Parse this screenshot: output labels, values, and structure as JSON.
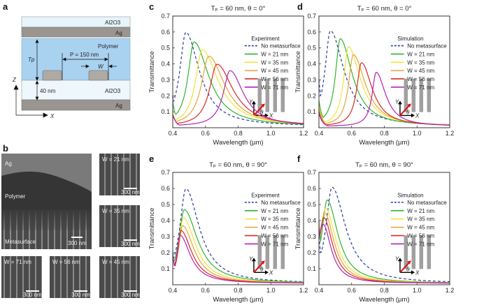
{
  "panel_labels": [
    "a",
    "b",
    "c",
    "d",
    "e",
    "f"
  ],
  "panel_a": {
    "layers": [
      "Al2O3",
      "Ag",
      "Polymer",
      "Al2O3",
      "Ag"
    ],
    "period_label": "P = 150 nm",
    "width_label": "W",
    "thickness_label": "Tp",
    "spacer_label": "40 nm",
    "axis_z": "Z",
    "axis_x": "X"
  },
  "panel_b": {
    "cross_section_labels": [
      "Ag",
      "Polymer",
      "Metasurface"
    ],
    "scale_bar": "300 nm",
    "tiles": [
      "W = 21 nm",
      "W = 35 nm",
      "W = 71 nm",
      "W = 56 nm",
      "W = 45 nm"
    ]
  },
  "colors": {
    "no_metasurface": "#2b3e9c",
    "w21": "#2fb52f",
    "w35": "#f2e23a",
    "w45": "#e8a33a",
    "w56": "#d42a24",
    "w71": "#b324b3"
  },
  "chart_data": [
    {
      "type": "line",
      "panel": "c",
      "title": "Tₚ = 60 nm, θ = 0°",
      "annotation": "Experiment",
      "xlabel": "Wavelength (µm)",
      "ylabel": "Transmittance",
      "xlim": [
        0.4,
        1.2
      ],
      "ylim": [
        0,
        0.7
      ],
      "xticks": [
        "0.4",
        "0.6",
        "0.8",
        "1.0",
        "1.2"
      ],
      "yticks": [
        "0.1",
        "0.2",
        "0.3",
        "0.4",
        "0.5",
        "0.6",
        "0.7"
      ],
      "inset_axes": [
        "Y",
        "X",
        "θ"
      ],
      "series": [
        {
          "name": "No metasurface",
          "color_key": "no_metasurface",
          "dashed": true,
          "peak_x": 0.48,
          "peak_y": 0.59,
          "start_y": 0.2,
          "width_left": 0.045,
          "width_right": 0.1
        },
        {
          "name": "W = 21 nm",
          "color_key": "w21",
          "peak_x": 0.53,
          "peak_y": 0.53,
          "start_y": 0.16,
          "width_left": 0.045,
          "width_right": 0.11
        },
        {
          "name": "W = 35 nm",
          "color_key": "w35",
          "peak_x": 0.58,
          "peak_y": 0.48,
          "start_y": 0.09,
          "width_left": 0.05,
          "width_right": 0.12
        },
        {
          "name": "W = 45 nm",
          "color_key": "w45",
          "peak_x": 0.62,
          "peak_y": 0.44,
          "start_y": 0.08,
          "width_left": 0.055,
          "width_right": 0.12
        },
        {
          "name": "W = 56 nm",
          "color_key": "w56",
          "peak_x": 0.67,
          "peak_y": 0.39,
          "start_y": 0.08,
          "width_left": 0.055,
          "width_right": 0.12
        },
        {
          "name": "W = 71 nm",
          "color_key": "w71",
          "peak_x": 0.75,
          "peak_y": 0.35,
          "start_y": 0.08,
          "width_left": 0.05,
          "width_right": 0.1
        }
      ]
    },
    {
      "type": "line",
      "panel": "d",
      "title": "Tₚ = 60 nm, θ = 0°",
      "annotation": "Simulation",
      "xlabel": "Wavelength (µm)",
      "ylabel": "Transmittance",
      "xlim": [
        0.4,
        1.2
      ],
      "ylim": [
        0,
        0.7
      ],
      "xticks": [
        "0.4",
        "0.6",
        "0.8",
        "1.0",
        "1.2"
      ],
      "yticks": [
        "0.1",
        "0.2",
        "0.3",
        "0.4",
        "0.5",
        "0.6",
        "0.7"
      ],
      "inset_axes": [
        "Y",
        "X",
        "θ"
      ],
      "series": [
        {
          "name": "No metasurface",
          "color_key": "no_metasurface",
          "dashed": true,
          "peak_x": 0.47,
          "peak_y": 0.6,
          "start_y": 0.3,
          "width_left": 0.04,
          "width_right": 0.1
        },
        {
          "name": "W = 21 nm",
          "color_key": "w21",
          "peak_x": 0.53,
          "peak_y": 0.55,
          "start_y": 0.17,
          "width_left": 0.035,
          "width_right": 0.09
        },
        {
          "name": "W = 35 nm",
          "color_key": "w35",
          "peak_x": 0.58,
          "peak_y": 0.5,
          "start_y": 0.14,
          "width_left": 0.035,
          "width_right": 0.09
        },
        {
          "name": "W = 45 nm",
          "color_key": "w45",
          "peak_x": 0.61,
          "peak_y": 0.45,
          "start_y": 0.12,
          "width_left": 0.035,
          "width_right": 0.09
        },
        {
          "name": "W = 56 nm",
          "color_key": "w56",
          "peak_x": 0.66,
          "peak_y": 0.4,
          "start_y": 0.1,
          "width_left": 0.035,
          "width_right": 0.08
        },
        {
          "name": "W = 71 nm",
          "color_key": "w71",
          "peak_x": 0.75,
          "peak_y": 0.34,
          "start_y": 0.09,
          "width_left": 0.03,
          "width_right": 0.07
        }
      ]
    },
    {
      "type": "line",
      "panel": "e",
      "title": "Tₚ = 60 nm, θ = 90°",
      "annotation": "Experiment",
      "xlabel": "Wavelength (µm)",
      "ylabel": "Transmittance",
      "xlim": [
        0.4,
        1.2
      ],
      "ylim": [
        0,
        0.7
      ],
      "xticks": [
        "0.4",
        "0.6",
        "0.8",
        "1.0",
        "1.2"
      ],
      "yticks": [
        "0.1",
        "0.2",
        "0.3",
        "0.4",
        "0.5",
        "0.6",
        "0.7"
      ],
      "inset_axes": [
        "Y",
        "X",
        "θ"
      ],
      "series": [
        {
          "name": "No metasurface",
          "color_key": "no_metasurface",
          "dashed": true,
          "peak_x": 0.48,
          "peak_y": 0.59,
          "start_y": 0.2,
          "width_left": 0.045,
          "width_right": 0.1
        },
        {
          "name": "W = 21 nm",
          "color_key": "w21",
          "peak_x": 0.47,
          "peak_y": 0.46,
          "start_y": 0.18,
          "width_left": 0.04,
          "width_right": 0.1
        },
        {
          "name": "W = 35 nm",
          "color_key": "w35",
          "peak_x": 0.465,
          "peak_y": 0.41,
          "start_y": 0.18,
          "width_left": 0.035,
          "width_right": 0.09
        },
        {
          "name": "W = 45 nm",
          "color_key": "w45",
          "peak_x": 0.46,
          "peak_y": 0.36,
          "start_y": 0.18,
          "width_left": 0.03,
          "width_right": 0.085
        },
        {
          "name": "W = 56 nm",
          "color_key": "w56",
          "peak_x": 0.45,
          "peak_y": 0.33,
          "start_y": 0.18,
          "width_left": 0.025,
          "width_right": 0.08
        },
        {
          "name": "W = 71 nm",
          "color_key": "w71",
          "peak_x": 0.445,
          "peak_y": 0.3,
          "start_y": 0.18,
          "width_left": 0.025,
          "width_right": 0.075
        }
      ]
    },
    {
      "type": "line",
      "panel": "f",
      "title": "Tₚ = 60 nm, θ = 90°",
      "annotation": "Simulation",
      "xlabel": "Wavelength (µm)",
      "ylabel": "Transmittance",
      "xlim": [
        0.4,
        1.2
      ],
      "ylim": [
        0,
        0.7
      ],
      "xticks": [
        "0.4",
        "0.6",
        "0.8",
        "1.0",
        "1.2"
      ],
      "yticks": [
        "0.1",
        "0.2",
        "0.3",
        "0.4",
        "0.5",
        "0.6",
        "0.7"
      ],
      "inset_axes": [
        "Y",
        "X",
        "θ"
      ],
      "series": [
        {
          "name": "No metasurface",
          "color_key": "no_metasurface",
          "dashed": true,
          "peak_x": 0.48,
          "peak_y": 0.6,
          "start_y": 0.3,
          "width_left": 0.045,
          "width_right": 0.1
        },
        {
          "name": "W = 21 nm",
          "color_key": "w21",
          "peak_x": 0.45,
          "peak_y": 0.52,
          "start_y": 0.4,
          "width_left": 0.04,
          "width_right": 0.08
        },
        {
          "name": "W = 35 nm",
          "color_key": "w35",
          "peak_x": 0.44,
          "peak_y": 0.47,
          "start_y": 0.38,
          "width_left": 0.04,
          "width_right": 0.075
        },
        {
          "name": "W = 45 nm",
          "color_key": "w45",
          "peak_x": 0.435,
          "peak_y": 0.44,
          "start_y": 0.37,
          "width_left": 0.04,
          "width_right": 0.07
        },
        {
          "name": "W = 56 nm",
          "color_key": "w56",
          "peak_x": 0.43,
          "peak_y": 0.41,
          "start_y": 0.36,
          "width_left": 0.04,
          "width_right": 0.065
        },
        {
          "name": "W = 71 nm",
          "color_key": "w71",
          "peak_x": 0.425,
          "peak_y": 0.37,
          "start_y": 0.34,
          "width_left": 0.04,
          "width_right": 0.06
        }
      ]
    }
  ]
}
